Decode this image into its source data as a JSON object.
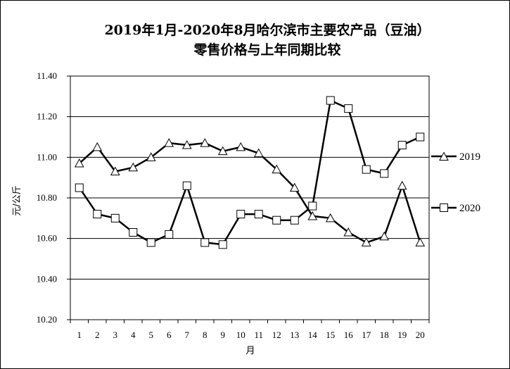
{
  "chart_data": {
    "type": "line",
    "title": "2019年1月-2020年8月哈尔滨市主要农产品（豆油）",
    "subtitle": "零售价格与上年同期比较",
    "xlabel": "月",
    "ylabel": "元/公斤",
    "ylim": [
      10.2,
      11.4
    ],
    "yticks": [
      "10.20",
      "10.40",
      "10.60",
      "10.80",
      "11.00",
      "11.20",
      "11.40"
    ],
    "categories": [
      "1",
      "2",
      "3",
      "4",
      "5",
      "6",
      "7",
      "8",
      "9",
      "10",
      "11",
      "12",
      "13",
      "14",
      "15",
      "16",
      "17",
      "18",
      "19",
      "20"
    ],
    "grid": "horizontal",
    "legend_position": "right",
    "series": [
      {
        "name": "2019",
        "marker": "triangle",
        "values": [
          10.97,
          11.05,
          10.93,
          10.95,
          11.0,
          11.07,
          11.06,
          11.07,
          11.03,
          11.05,
          11.02,
          10.94,
          10.85,
          10.71,
          10.7,
          10.63,
          10.58,
          10.61,
          10.86,
          10.58
        ]
      },
      {
        "name": "2020",
        "marker": "square",
        "values": [
          10.85,
          10.72,
          10.7,
          10.63,
          10.58,
          10.62,
          10.86,
          10.58,
          10.57,
          10.72,
          10.72,
          10.69,
          10.69,
          10.76,
          11.28,
          11.24,
          10.94,
          10.92,
          11.06,
          11.1
        ]
      }
    ]
  }
}
